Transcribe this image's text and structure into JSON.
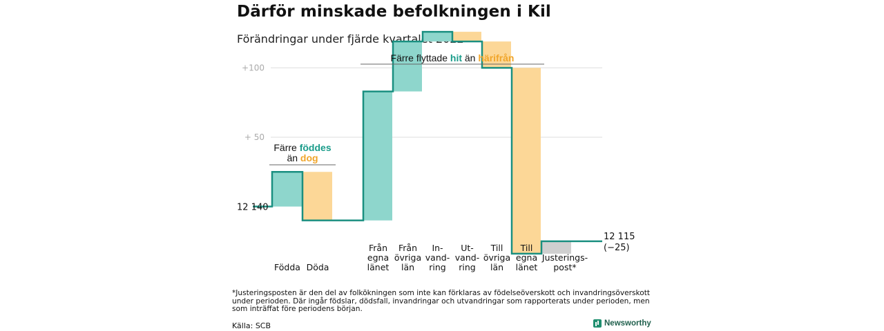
{
  "title": "Därför minskade befolkningen i Kil",
  "subtitle": "Förändringar under fjärde kvartalet 2022",
  "colors": {
    "increase": "#8ed6cc",
    "decrease": "#fcd797",
    "adjustment": "#cfcfcf",
    "line": "#1a8f80",
    "teal_text": "#1a9c8a",
    "orange_text": "#f0a52a",
    "grid": "#dddddd"
  },
  "chart_data": {
    "type": "waterfall",
    "start_value": 12140,
    "end_value": 12115,
    "start_label": "12 140",
    "end_label": "12 115",
    "end_change_label": "(−25)",
    "y_ticks": [
      {
        "label": "+100",
        "value": 12240
      },
      {
        "label": "+ 50",
        "value": 12190
      }
    ],
    "ylim": [
      12100,
      12274
    ],
    "steps": [
      {
        "label": "Födda",
        "delta": 25,
        "type": "increase"
      },
      {
        "label": "Döda",
        "delta": -35,
        "type": "decrease"
      },
      {
        "label": "Från egna länet",
        "delta": 93,
        "type": "increase"
      },
      {
        "label": "Från övriga län",
        "delta": 36,
        "type": "increase"
      },
      {
        "label": "In-vand-ring",
        "delta": 7,
        "type": "increase"
      },
      {
        "label": "Ut-vand-ring",
        "delta": -7,
        "type": "decrease"
      },
      {
        "label": "Till övriga län",
        "delta": -19,
        "type": "decrease"
      },
      {
        "label": "Till egna länet",
        "delta": -134,
        "type": "decrease"
      },
      {
        "label": "Justerings-post*",
        "delta": 9,
        "type": "adjustment"
      }
    ],
    "category_labels": [
      [
        "Födda"
      ],
      [
        "Döda"
      ],
      [
        "Från",
        "egna",
        "länet"
      ],
      [
        "Från",
        "övriga",
        "län"
      ],
      [
        "In-",
        "vand-",
        "ring"
      ],
      [
        "Ut-",
        "vand-",
        "ring"
      ],
      [
        "Till",
        "övriga",
        "län"
      ],
      [
        "Till",
        "egna",
        "länet"
      ],
      [
        "Justerings-",
        "post*"
      ]
    ],
    "annotations": [
      {
        "id": "births",
        "lines": [
          [
            {
              "text": "Färre ",
              "color": "plain"
            },
            {
              "text": "föddes",
              "color": "teal"
            }
          ],
          [
            {
              "text": "än ",
              "color": "plain"
            },
            {
              "text": "dog",
              "color": "orange"
            }
          ]
        ],
        "span_from": 0,
        "span_to": 1
      },
      {
        "id": "migration",
        "lines": [
          [
            {
              "text": "Färre flyttade ",
              "color": "plain"
            },
            {
              "text": "hit",
              "color": "teal"
            },
            {
              "text": " än ",
              "color": "plain"
            },
            {
              "text": "härifrån",
              "color": "orange"
            }
          ]
        ],
        "span_from": 2,
        "span_to": 7
      }
    ]
  },
  "footnote": "*Justeringsposten är den del av folkökningen som inte kan förklaras av födelseöverskott och invandringsöverskott under perioden. Där ingår födslar, dödsfall, invandringar och utvandringar som rapporterats under perioden, men som inträffat före periodens början.",
  "source": "Källa: SCB",
  "logo_text": "Newsworthy"
}
